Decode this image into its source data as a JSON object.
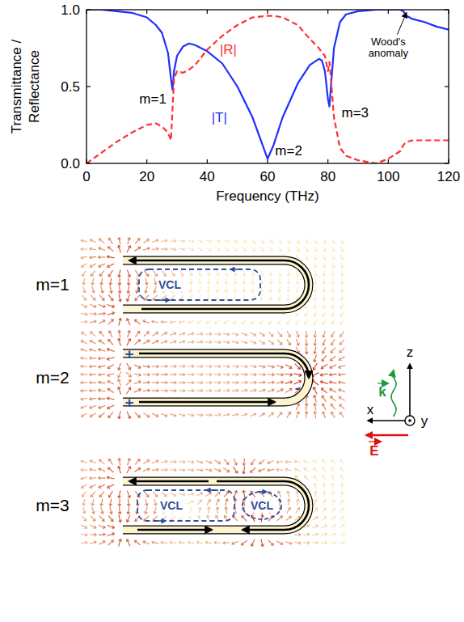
{
  "chart_data": {
    "type": "line",
    "xlabel": "Frequency (THz)",
    "ylabel": "Transmittance / Reflectance",
    "x": [
      0,
      5,
      10,
      15,
      20,
      23,
      25,
      27,
      28,
      28.5,
      29,
      30,
      32,
      34,
      36,
      40,
      45,
      50,
      55,
      60,
      62,
      65,
      70,
      74,
      77,
      78,
      79,
      80,
      80.5,
      81,
      82,
      84,
      86,
      90,
      96,
      100,
      104,
      105,
      106,
      108,
      112,
      116,
      120
    ],
    "series": [
      {
        "name": "|T|",
        "color": "#1f2fff",
        "line_style": "solid",
        "label_x": 44,
        "label_y": 0.3,
        "values": [
          1.0,
          1.0,
          0.99,
          0.98,
          0.95,
          0.9,
          0.85,
          0.72,
          0.55,
          0.48,
          0.6,
          0.7,
          0.76,
          0.78,
          0.77,
          0.73,
          0.65,
          0.5,
          0.3,
          0.03,
          0.12,
          0.3,
          0.52,
          0.64,
          0.68,
          0.67,
          0.6,
          0.42,
          0.37,
          0.5,
          0.75,
          0.92,
          0.97,
          0.99,
          1.0,
          1.0,
          1.0,
          0.99,
          0.96,
          0.94,
          0.92,
          0.89,
          0.87
        ]
      },
      {
        "name": "|R|",
        "color": "#ff3030",
        "line_style": "dashed",
        "label_x": 47,
        "label_y": 0.74,
        "values": [
          0,
          0.07,
          0.14,
          0.2,
          0.25,
          0.26,
          0.24,
          0.2,
          0.15,
          0.35,
          0.55,
          0.6,
          0.59,
          0.61,
          0.64,
          0.74,
          0.83,
          0.9,
          0.95,
          0.96,
          0.96,
          0.95,
          0.9,
          0.81,
          0.75,
          0.72,
          0.7,
          0.6,
          0.66,
          0.55,
          0.3,
          0.1,
          0.05,
          0.02,
          0.0,
          0.03,
          0.08,
          0.12,
          0.14,
          0.15,
          0.15,
          0.15,
          0.15
        ]
      }
    ],
    "xlim": [
      0,
      120
    ],
    "xticks": [
      0,
      20,
      40,
      60,
      80,
      100,
      120
    ],
    "ylim": [
      0,
      1
    ],
    "yticks": [
      {
        "value": 0,
        "label": "0.0"
      },
      {
        "value": 0.5,
        "label": "0.5"
      },
      {
        "value": 1,
        "label": "1.0"
      }
    ],
    "grid": false,
    "annotations": [
      {
        "text": "m=1",
        "x": 22,
        "y": 0.42
      },
      {
        "text": "m=2",
        "x": 67,
        "y": 0.08
      },
      {
        "text": "m=3",
        "x": 89,
        "y": 0.33
      },
      {
        "text": "Wood's anomaly",
        "x": 100,
        "y": 0.77,
        "arrow_x": 106,
        "arrow_y": 0.99
      }
    ]
  },
  "diagram": {
    "panels": [
      {
        "label": "m=1",
        "loops": [
          "VCL"
        ]
      },
      {
        "label": "m=2",
        "charges": [
          "+",
          "+",
          "-"
        ]
      },
      {
        "label": "m=3",
        "loops": [
          "VCL",
          "VCL"
        ]
      }
    ],
    "axes": {
      "z": "z",
      "x": "x",
      "y": "y",
      "k": "k",
      "E": "E"
    }
  }
}
